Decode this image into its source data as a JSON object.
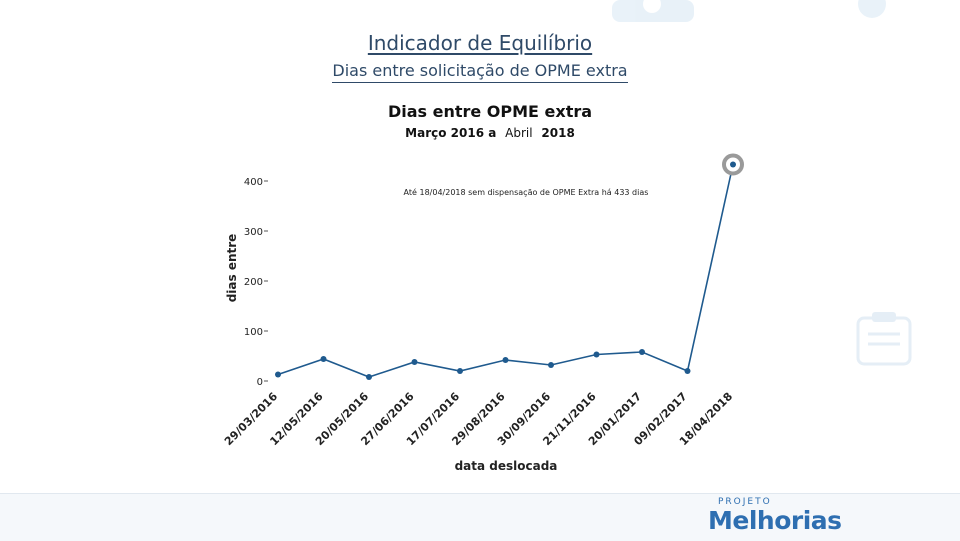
{
  "slide": {
    "title": "Indicador de Equilíbrio",
    "subtitle": "Dias entre solicitação de OPME extra"
  },
  "logo": {
    "top_text": "PROJETO",
    "main_text": "Melhorias",
    "color": "#2e6fb1"
  },
  "chart_data": {
    "type": "line",
    "title": "Dias entre OPME extra",
    "subtitle_parts": [
      "Março 2016 a",
      "Abril",
      "2018"
    ],
    "xlabel": "data deslocada",
    "ylabel": "dias entre",
    "yticks": [
      0,
      100,
      200,
      300,
      400
    ],
    "ylim": [
      0,
      440
    ],
    "annotation": "Até 18/04/2018 sem dispensação de OPME Extra há 433 dias",
    "x": [
      "29/03/2016",
      "12/05/2016",
      "20/05/2016",
      "27/06/2016",
      "17/07/2016",
      "29/08/2016",
      "30/09/2016",
      "21/11/2016",
      "20/01/2017",
      "09/02/2017",
      "18/04/2018"
    ],
    "values": [
      13,
      44,
      8,
      38,
      20,
      42,
      32,
      53,
      58,
      20,
      433
    ],
    "line_color": "#1f5a8e",
    "highlight_index": 10
  }
}
